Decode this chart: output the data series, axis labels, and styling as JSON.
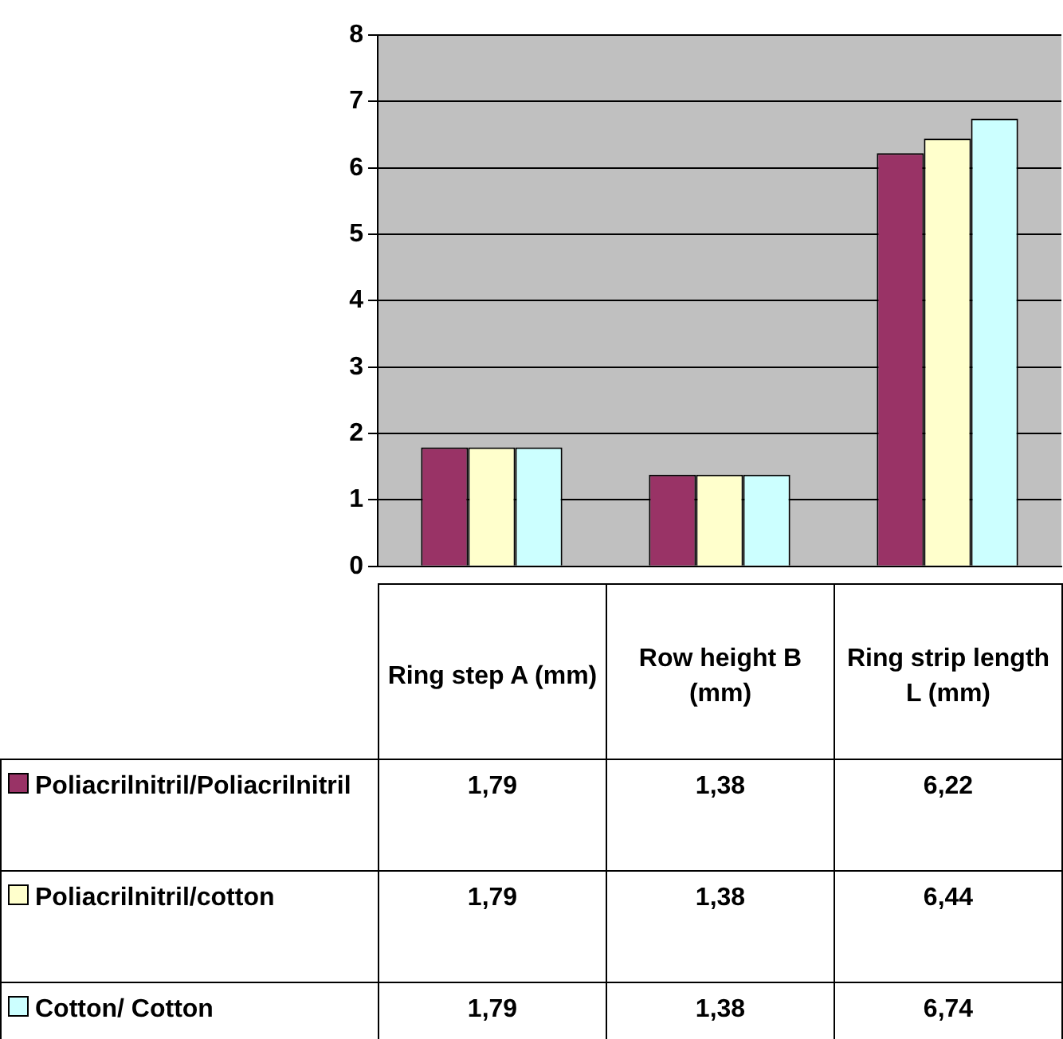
{
  "chart_data": {
    "type": "bar",
    "categories": [
      "Ring step A (mm)",
      "Row height B (mm)",
      "Ring strip length L (mm)"
    ],
    "series": [
      {
        "name": "Poliacrilnitril/Poliacrilnitril",
        "color": "#993366",
        "values": [
          1.79,
          1.38,
          6.22
        ],
        "value_labels": [
          "1,79",
          "1,38",
          "6,22"
        ]
      },
      {
        "name": "Poliacrilnitril/cotton",
        "color": "#ffffcc",
        "values": [
          1.79,
          1.38,
          6.44
        ],
        "value_labels": [
          "1,79",
          "1,38",
          "6,44"
        ]
      },
      {
        "name": "Cotton/ Cotton",
        "color": "#ccffff",
        "values": [
          1.79,
          1.38,
          6.74
        ],
        "value_labels": [
          "1,79",
          "1,38",
          "6,74"
        ]
      }
    ],
    "ylim": [
      0,
      8
    ],
    "yticks": [
      0,
      1,
      2,
      3,
      4,
      5,
      6,
      7,
      8
    ],
    "grid": "y",
    "legend": "bottom left"
  }
}
